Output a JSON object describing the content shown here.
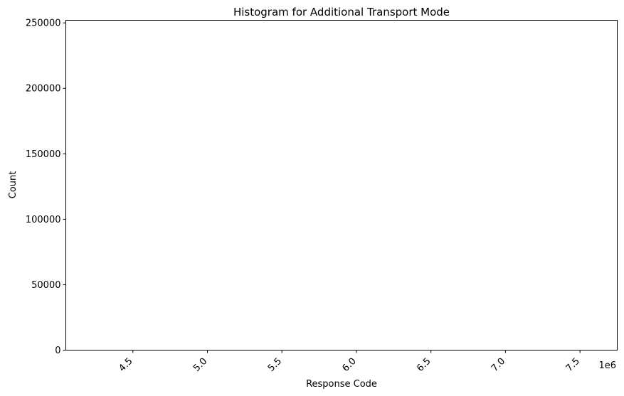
{
  "chart_data": {
    "type": "bar",
    "title": "Histogram for Additional Transport Mode",
    "xlabel": "Response Code",
    "ylabel": "Count",
    "x_offset_label": "1e6",
    "xlim": [
      4.05,
      7.75
    ],
    "ylim": [
      0,
      252000
    ],
    "x_ticks": [
      4.5,
      5.0,
      5.5,
      6.0,
      6.5,
      7.0,
      7.5
    ],
    "x_tick_labels": [
      "4.5",
      "5.0",
      "5.5",
      "6.0",
      "6.5",
      "7.0",
      "7.5"
    ],
    "y_ticks": [
      0,
      50000,
      100000,
      150000,
      200000,
      250000
    ],
    "y_tick_labels": [
      "0",
      "50000",
      "100000",
      "150000",
      "200000",
      "250000"
    ],
    "bins": [],
    "grid": false,
    "legend": "none"
  }
}
